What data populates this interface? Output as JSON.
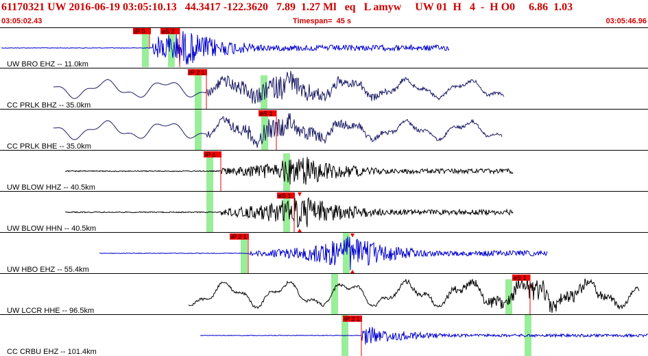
{
  "header": {
    "title": "61170321 UW 2016-06-19 03:05:10.13   44.3417 -122.3620   7.89  1.27 Ml   eq   L amyw     UW 01  H   4  -  H O0     6.86  1.03",
    "start_time": "03:05:02.43",
    "timespan": "Timespan=  45 s",
    "end_time": "03:05:46.96"
  },
  "colors": {
    "header_text": "#cc0000",
    "blue_trace": "#0000cc",
    "black_trace": "#000000",
    "navy_trace": "#1a1a66",
    "pick_flag": "#ee0000",
    "pick_window": "#99ee99"
  },
  "channels": [
    {
      "label": "UW BRO EHZ -- 11.0km",
      "color": "blue",
      "style": "impulsive",
      "picks": [
        "iP 0",
        "eS 2"
      ]
    },
    {
      "label": "CC PRLK BHZ -- 35.0km",
      "color": "navy",
      "style": "longperiod",
      "picks": [
        "iP 2 1"
      ]
    },
    {
      "label": "CC PRLK BHE -- 35.0km",
      "color": "navy",
      "style": "longperiod",
      "picks": [
        "eS 1"
      ]
    },
    {
      "label": "UW BLOW HHZ -- 40.5km",
      "color": "black",
      "style": "noisy",
      "picks": [
        "iP 1"
      ]
    },
    {
      "label": "UW BLOW HHN -- 40.5km",
      "color": "black",
      "style": "noisy",
      "picks": [
        "eS 1"
      ]
    },
    {
      "label": "UW HBO EHZ -- 55.4km",
      "color": "blue",
      "style": "noisy",
      "picks": [
        "iP 2 1"
      ]
    },
    {
      "label": "UW LCCR HHE -- 96.5km",
      "color": "black",
      "style": "wavy",
      "picks": [
        "eS 1"
      ]
    },
    {
      "label": "CC CRBU EHZ -- 101.4km",
      "color": "blue",
      "style": "late",
      "picks": [
        "iP 2 1"
      ]
    }
  ]
}
